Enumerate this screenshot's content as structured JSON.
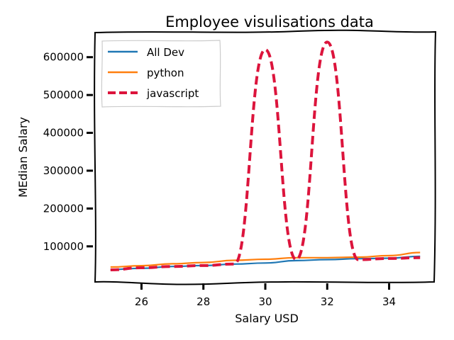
{
  "chart_data": {
    "type": "line",
    "title": "Employee visulisations data",
    "xlabel": "Salary USD",
    "ylabel": "MEdian Salary",
    "x": [
      25,
      26,
      27,
      28,
      29,
      30,
      31,
      32,
      33,
      34,
      35
    ],
    "xlim": [
      24.5,
      35.5
    ],
    "ylim": [
      6000,
      665000
    ],
    "xticks": [
      26,
      28,
      30,
      32,
      34
    ],
    "yticks": [
      100000,
      200000,
      300000,
      400000,
      500000,
      600000
    ],
    "grid": false,
    "legend": "top-left",
    "series": [
      {
        "name": "All Dev",
        "color": "#1f77b4",
        "style": "solid",
        "values": [
          38496,
          42000,
          46752,
          49320,
          53200,
          56000,
          62316,
          64928,
          67317,
          68748,
          73752
        ]
      },
      {
        "name": "python",
        "color": "#ff7f0e",
        "style": "solid",
        "values": [
          45372,
          48876,
          53850,
          57287,
          63016,
          65998,
          70003,
          70000,
          71496,
          75370,
          83640
        ]
      },
      {
        "name": "javascript",
        "color": "#dc143c",
        "style": "dashed",
        "values": [
          37810,
          43515,
          46823,
          49293,
          53437,
          620000,
          65000,
          640000,
          65000,
          68000,
          70000
        ]
      }
    ]
  }
}
